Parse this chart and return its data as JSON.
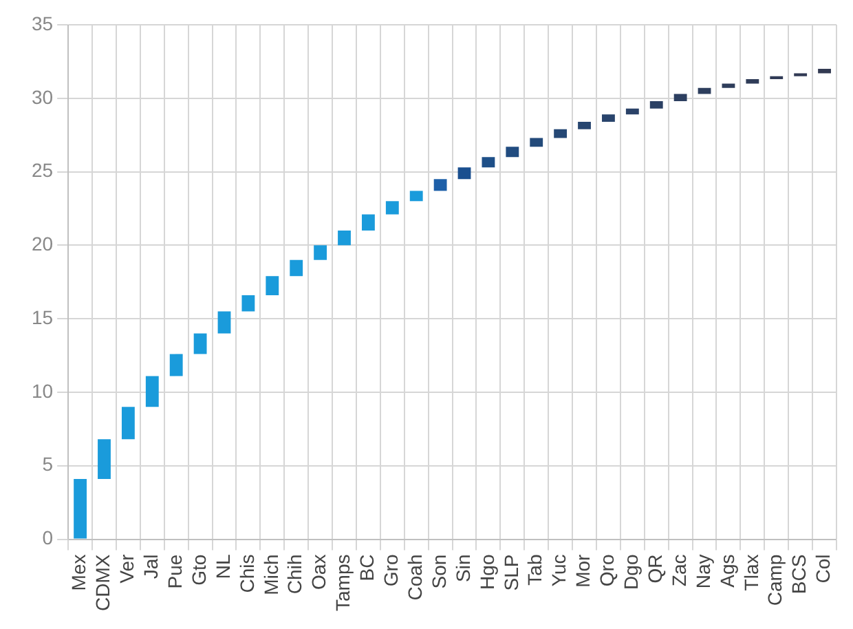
{
  "chart_data": {
    "type": "bar",
    "categories": [
      "Mex",
      "CDMX",
      "Ver",
      "Jal",
      "Pue",
      "Gto",
      "NL",
      "Chis",
      "Mich",
      "Chih",
      "Oax",
      "Tamps",
      "BC",
      "Gro",
      "Coah",
      "Son",
      "Sin",
      "Hgo",
      "SLP",
      "Tab",
      "Yuc",
      "Mor",
      "Qro",
      "Dgo",
      "QR",
      "Zac",
      "Nay",
      "Ags",
      "Tlax",
      "Camp",
      "BCS",
      "Col"
    ],
    "values": [
      4.1,
      2.7,
      2.2,
      2.1,
      1.5,
      1.4,
      1.5,
      1.1,
      1.3,
      1.1,
      1.0,
      1.0,
      1.1,
      0.9,
      0.7,
      0.8,
      0.8,
      0.7,
      0.7,
      0.6,
      0.6,
      0.5,
      0.5,
      0.4,
      0.5,
      0.5,
      0.4,
      0.3,
      0.3,
      0.2,
      0.2,
      0.3
    ],
    "base": [
      0,
      4.1,
      6.8,
      9.0,
      11.1,
      12.6,
      14.0,
      15.5,
      16.6,
      17.9,
      19.0,
      20.0,
      21.0,
      22.1,
      23.0,
      23.7,
      24.5,
      25.3,
      26.0,
      26.7,
      27.3,
      27.9,
      28.4,
      28.9,
      29.3,
      29.8,
      30.3,
      30.7,
      31.0,
      31.3,
      31.5,
      31.7
    ],
    "colors": [
      "#1a9bdb",
      "#1a9bdb",
      "#1a9bdb",
      "#1a9bdb",
      "#1a9bdb",
      "#1a9bdb",
      "#1a9bdb",
      "#1a9bdb",
      "#1a9bdb",
      "#1a9bdb",
      "#1a9bdb",
      "#1a9bdb",
      "#1a9bdb",
      "#1a9bdb",
      "#1a9bdb",
      "#1d5fa8",
      "#1a4f8f",
      "#1e4f88",
      "#214c80",
      "#234a7a",
      "#254875",
      "#274670",
      "#29446c",
      "#2a4268",
      "#2b4064",
      "#2c3f60",
      "#2d3e5d",
      "#2e3d5a",
      "#2f3c58",
      "#303b56",
      "#313a54",
      "#323a52"
    ],
    "ylim": [
      0,
      35
    ],
    "yticks": [
      0,
      5,
      10,
      15,
      20,
      25,
      30,
      35
    ],
    "grid": true
  }
}
